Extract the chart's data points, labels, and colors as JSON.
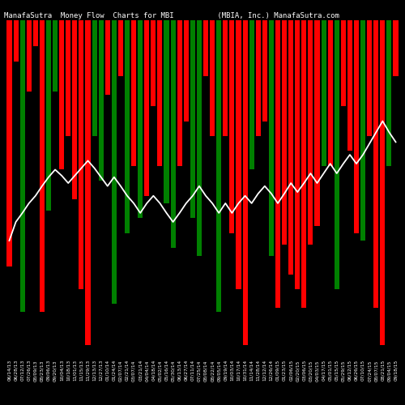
{
  "title": "ManafaSutra  Money Flow  Charts for MBI          (MBIA, Inc.) ManafaSutra.com",
  "background_color": "#000000",
  "bar_colors": [
    "red",
    "red",
    "green",
    "red",
    "red",
    "red",
    "green",
    "green",
    "red",
    "red",
    "red",
    "red",
    "red",
    "green",
    "green",
    "red",
    "green",
    "red",
    "green",
    "red",
    "green",
    "red",
    "red",
    "red",
    "green",
    "green",
    "red",
    "red",
    "green",
    "green",
    "red",
    "red",
    "green",
    "red",
    "red",
    "red",
    "red",
    "green",
    "red",
    "red",
    "green",
    "red",
    "red",
    "red",
    "red",
    "red",
    "red",
    "red",
    "green",
    "red",
    "green",
    "red",
    "red",
    "red",
    "green",
    "red",
    "red",
    "red",
    "green",
    "red"
  ],
  "bar_values": [
    330,
    55,
    390,
    95,
    35,
    390,
    255,
    95,
    200,
    155,
    240,
    360,
    435,
    155,
    215,
    100,
    380,
    75,
    285,
    195,
    265,
    235,
    115,
    195,
    245,
    305,
    195,
    135,
    265,
    315,
    75,
    155,
    390,
    155,
    285,
    360,
    435,
    200,
    155,
    135,
    315,
    385,
    300,
    340,
    360,
    385,
    300,
    275,
    195,
    195,
    360,
    115,
    175,
    285,
    295,
    155,
    385,
    435,
    195,
    75
  ],
  "dates": [
    "06/14/13",
    "06/28/13",
    "07/12/13",
    "07/26/13",
    "08/09/13",
    "08/23/13",
    "09/06/13",
    "09/20/13",
    "10/04/13",
    "10/18/13",
    "11/01/13",
    "11/15/13",
    "11/29/13",
    "12/13/13",
    "12/27/13",
    "01/10/14",
    "01/24/14",
    "02/07/14",
    "02/21/14",
    "03/07/14",
    "03/21/14",
    "04/04/14",
    "04/18/14",
    "05/02/14",
    "05/16/14",
    "05/30/14",
    "06/13/14",
    "06/27/14",
    "07/11/14",
    "07/25/14",
    "08/08/14",
    "08/22/14",
    "09/05/14",
    "09/19/14",
    "10/03/14",
    "10/17/14",
    "10/31/14",
    "11/14/14",
    "11/28/14",
    "12/12/14",
    "12/26/14",
    "01/09/15",
    "01/23/15",
    "02/06/15",
    "02/20/15",
    "03/06/15",
    "03/20/15",
    "04/03/15",
    "04/17/15",
    "05/01/15",
    "05/15/15",
    "05/29/15",
    "06/12/15",
    "06/26/15",
    "07/10/15",
    "07/24/15",
    "08/07/15",
    "08/21/15",
    "09/04/15",
    "09/18/15"
  ],
  "line_y": [
    295,
    270,
    258,
    245,
    235,
    222,
    210,
    200,
    208,
    218,
    208,
    198,
    188,
    198,
    210,
    222,
    210,
    222,
    235,
    245,
    258,
    245,
    235,
    245,
    258,
    270,
    258,
    245,
    235,
    222,
    235,
    245,
    258,
    245,
    258,
    245,
    235,
    245,
    232,
    222,
    232,
    245,
    232,
    218,
    230,
    218,
    205,
    218,
    205,
    192,
    205,
    192,
    180,
    192,
    180,
    165,
    150,
    135,
    150,
    163
  ],
  "ylim_min": 0,
  "ylim_max": 450,
  "figsize": [
    5.0,
    5.0
  ],
  "dpi": 100,
  "title_fontsize": 6.5,
  "tick_fontsize": 4.2
}
